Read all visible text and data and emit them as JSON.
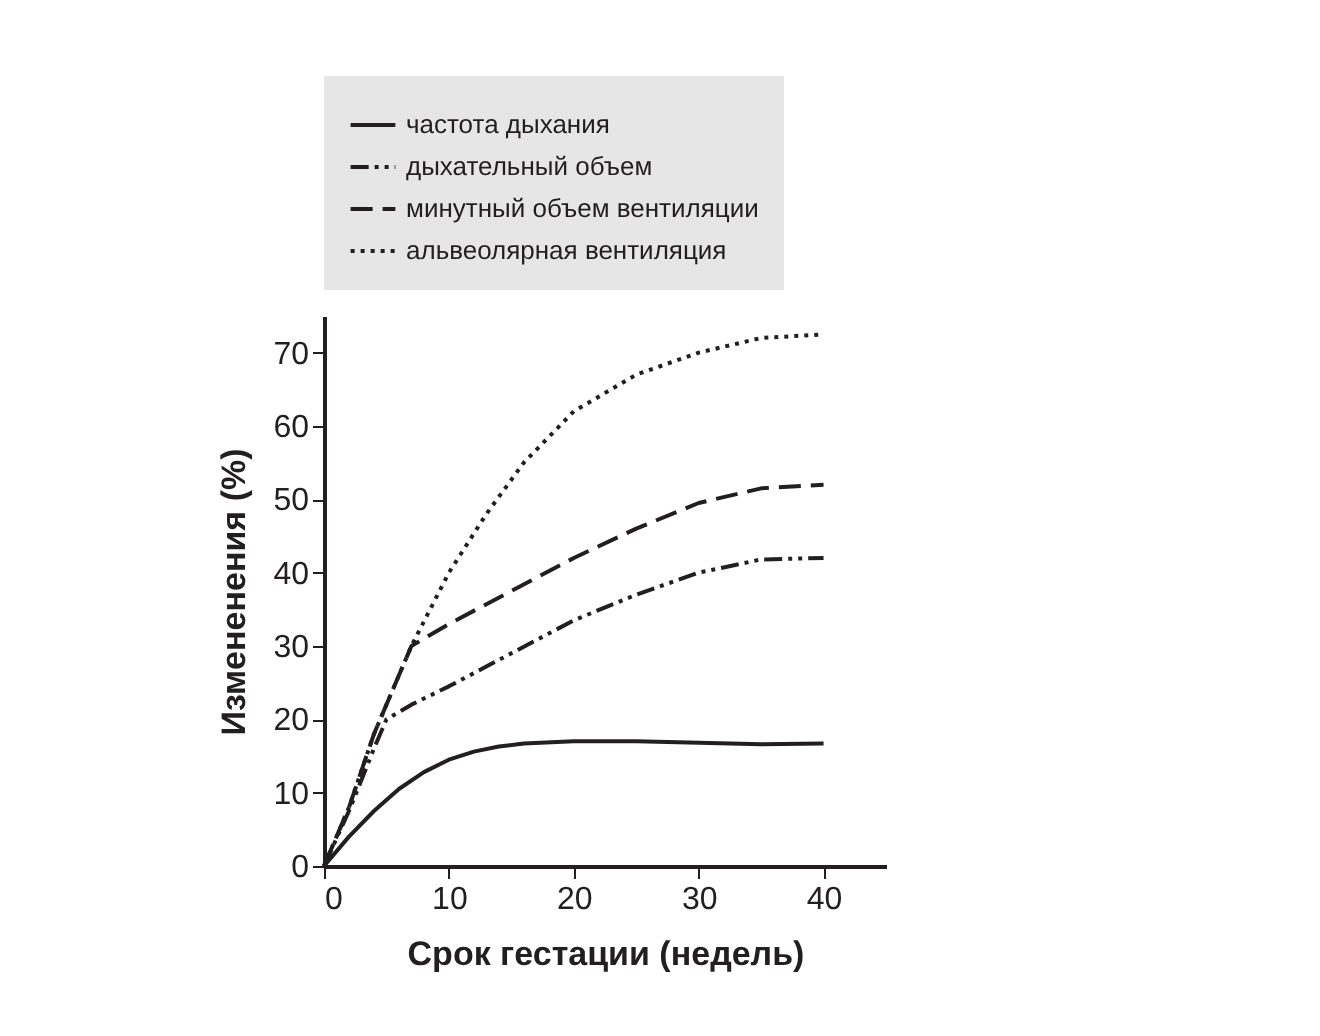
{
  "chart_data": {
    "type": "line",
    "xlabel": "Срок гестации (недель)",
    "ylabel": "Измененения (%)",
    "xlim": [
      0,
      45
    ],
    "xticks": [
      0,
      10,
      20,
      30,
      40
    ],
    "ylim": [
      0,
      75
    ],
    "yticks": [
      0,
      10,
      20,
      30,
      40,
      50,
      60,
      70
    ],
    "grid": false,
    "legend": "top left",
    "marker": "none",
    "series": [
      {
        "name": "частота дыхания",
        "color": "#231f20",
        "line_style": "solid",
        "x": [
          0,
          2,
          4,
          6,
          8,
          10,
          12,
          14,
          16,
          20,
          25,
          30,
          35,
          40
        ],
        "values": [
          0,
          4,
          7.5,
          10.5,
          12.8,
          14.5,
          15.6,
          16.3,
          16.7,
          17,
          17,
          16.8,
          16.6,
          16.7
        ]
      },
      {
        "name": "дыхательный объем",
        "color": "#231f20",
        "line_style": "dashdot",
        "x": [
          0,
          2,
          4,
          5,
          7,
          10,
          15,
          20,
          25,
          30,
          35,
          40
        ],
        "values": [
          0,
          7.5,
          16,
          20,
          22,
          24.5,
          29,
          33.5,
          37,
          40,
          41.8,
          42
        ]
      },
      {
        "name": "минутный объем вентиляции",
        "color": "#231f20",
        "line_style": "dashed",
        "x": [
          0,
          2,
          4,
          6,
          7,
          10,
          15,
          20,
          25,
          30,
          35,
          40
        ],
        "values": [
          0,
          8,
          18,
          26,
          30,
          33,
          37.5,
          42,
          46,
          49.5,
          51.5,
          52
        ]
      },
      {
        "name": "альвеолярная вентиляция",
        "color": "#231f20",
        "line_style": "dotted",
        "x": [
          0,
          2,
          4,
          7,
          10,
          13,
          16,
          20,
          25,
          30,
          35,
          40
        ],
        "values": [
          0,
          8,
          18,
          30,
          40,
          48,
          55,
          62,
          67,
          70,
          72,
          72.5
        ]
      }
    ]
  }
}
